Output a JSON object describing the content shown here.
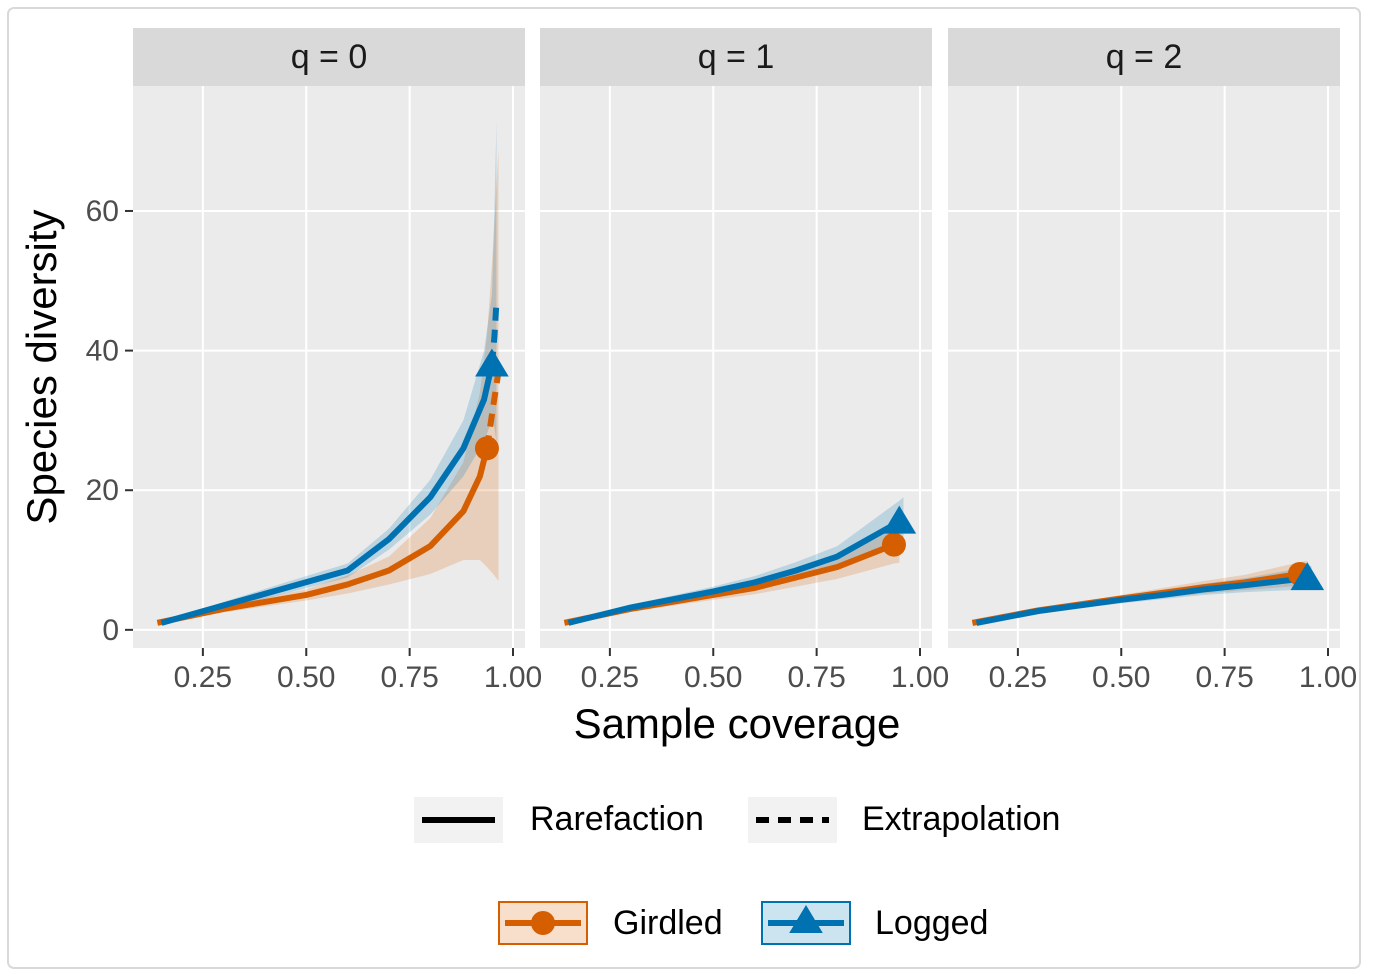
{
  "chart_data": {
    "type": "line",
    "x_label": "Sample coverage",
    "y_label": "Species diversity",
    "xlim": [
      0.081,
      1.029
    ],
    "ylim": [
      -2.6,
      77.9
    ],
    "xticks": [
      {
        "value": 0.25,
        "label": "0.25"
      },
      {
        "value": 0.5,
        "label": "0.50"
      },
      {
        "value": 0.75,
        "label": "0.75"
      },
      {
        "value": 1.0,
        "label": "1.00"
      }
    ],
    "yticks": [
      0,
      20,
      40,
      60
    ],
    "grid": true,
    "line_types": [
      "Rarefaction",
      "Extrapolation"
    ],
    "facets": [
      {
        "title": "q = 0",
        "series": [
          {
            "name": "Girdled",
            "color": "#D55E00",
            "marker": "circle",
            "x": [
              0.14,
              0.3,
              0.5,
              0.6,
              0.7,
              0.8,
              0.88,
              0.92,
              0.937,
              0.952,
              0.965
            ],
            "rarefaction": [
              1,
              3,
              5,
              6.5,
              8.5,
              12,
              17,
              22,
              26,
              null,
              null
            ],
            "extrapolation": [
              null,
              null,
              null,
              null,
              null,
              null,
              null,
              null,
              26,
              32,
              37
            ],
            "lower": [
              0.8,
              2.5,
              4.2,
              5.2,
              6.5,
              8,
              10,
              10,
              9,
              8,
              7
            ],
            "upper": [
              1.2,
              3.5,
              5.8,
              7.8,
              10.5,
              16,
              24,
              34,
              42,
              55,
              69
            ]
          },
          {
            "name": "Logged",
            "color": "#0072B2",
            "marker": "triangle",
            "x": [
              0.15,
              0.3,
              0.45,
              0.6,
              0.7,
              0.8,
              0.88,
              0.93,
              0.949,
              0.955,
              0.96
            ],
            "rarefaction": [
              1,
              3.5,
              6,
              8.5,
              13,
              19,
              26,
              33,
              38,
              null,
              null
            ],
            "extrapolation": [
              null,
              null,
              null,
              null,
              null,
              null,
              null,
              null,
              38,
              42,
              47
            ],
            "lower": [
              0.8,
              3,
              5.2,
              7.5,
              11.5,
              16.5,
              22,
              27,
              30,
              29,
              27
            ],
            "upper": [
              1.2,
              4,
              6.8,
              9.5,
              14.5,
              21.5,
              30,
              40,
              48,
              60,
              73
            ]
          }
        ]
      },
      {
        "title": "q = 1",
        "series": [
          {
            "name": "Girdled",
            "color": "#D55E00",
            "marker": "circle",
            "x": [
              0.14,
              0.3,
              0.5,
              0.6,
              0.7,
              0.8,
              0.937,
              0.95
            ],
            "rarefaction": [
              1,
              3,
              5,
              6,
              7.5,
              9,
              12.2,
              null
            ],
            "extrapolation": [
              null,
              null,
              null,
              null,
              null,
              null,
              12.2,
              12.6
            ],
            "lower": [
              0.8,
              2.6,
              4.3,
              5.1,
              6.2,
              7.3,
              9.5,
              9.6
            ],
            "upper": [
              1.2,
              3.4,
              5.7,
              6.9,
              8.8,
              10.7,
              15,
              15.6
            ]
          },
          {
            "name": "Logged",
            "color": "#0072B2",
            "marker": "triangle",
            "x": [
              0.15,
              0.3,
              0.5,
              0.6,
              0.7,
              0.8,
              0.95,
              0.96
            ],
            "rarefaction": [
              1,
              3.2,
              5.5,
              6.8,
              8.5,
              10.5,
              15.5,
              null
            ],
            "extrapolation": [
              null,
              null,
              null,
              null,
              null,
              null,
              15.5,
              16
            ],
            "lower": [
              0.8,
              2.8,
              4.8,
              5.9,
              7.3,
              9,
              12.5,
              12.8
            ],
            "upper": [
              1.2,
              3.6,
              6.2,
              7.7,
              9.7,
              12,
              18.5,
              19
            ]
          }
        ]
      },
      {
        "title": "q = 2",
        "series": [
          {
            "name": "Girdled",
            "color": "#D55E00",
            "marker": "circle",
            "x": [
              0.14,
              0.3,
              0.5,
              0.6,
              0.7,
              0.8,
              0.932,
              0.95
            ],
            "rarefaction": [
              1,
              2.8,
              4.5,
              5.3,
              6.1,
              6.8,
              8,
              null
            ],
            "extrapolation": [
              null,
              null,
              null,
              null,
              null,
              null,
              8,
              8.1
            ],
            "lower": [
              0.8,
              2.5,
              4,
              4.6,
              5.2,
              5.7,
              6.3,
              6.3
            ],
            "upper": [
              1.2,
              3.1,
              5,
              6,
              7,
              7.9,
              9.7,
              9.9
            ]
          },
          {
            "name": "Logged",
            "color": "#0072B2",
            "marker": "triangle",
            "x": [
              0.15,
              0.3,
              0.5,
              0.6,
              0.7,
              0.8,
              0.95,
              0.96
            ],
            "rarefaction": [
              1,
              2.7,
              4.3,
              5,
              5.8,
              6.4,
              7.4,
              null
            ],
            "extrapolation": [
              null,
              null,
              null,
              null,
              null,
              null,
              7.4,
              7.5
            ],
            "lower": [
              0.8,
              2.4,
              3.8,
              4.4,
              5,
              5.4,
              5.8,
              5.8
            ],
            "upper": [
              1.2,
              3,
              4.8,
              5.6,
              6.6,
              7.4,
              9,
              9.2
            ]
          }
        ]
      }
    ]
  }
}
